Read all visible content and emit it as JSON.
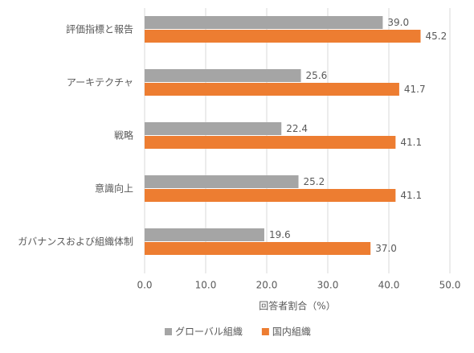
{
  "chart_data": {
    "type": "hbar",
    "categories": [
      "評価指標と報告",
      "アーキテクチャ",
      "戦略",
      "意識向上",
      "ガバナンスおよび組織体制"
    ],
    "series": [
      {
        "name": "グローバル組織",
        "color": "#a5a5a5",
        "values": [
          39.0,
          25.6,
          22.4,
          25.2,
          19.6
        ],
        "value_labels": [
          "39.0",
          "25.6",
          "22.4",
          "25.2",
          "19.6"
        ]
      },
      {
        "name": "国内組織",
        "color": "#ed7d31",
        "values": [
          45.2,
          41.7,
          41.1,
          41.1,
          37.0
        ],
        "value_labels": [
          "45.2",
          "41.7",
          "41.1",
          "41.1",
          "37.0"
        ]
      }
    ],
    "xlabel": "回答者割合（%）",
    "xlim": [
      0,
      50
    ],
    "xticks": [
      {
        "value": 0,
        "label": "0.0"
      },
      {
        "value": 10,
        "label": "10.0"
      },
      {
        "value": 20,
        "label": "20.0"
      },
      {
        "value": 30,
        "label": "30.0"
      },
      {
        "value": 40,
        "label": "40.0"
      },
      {
        "value": 50,
        "label": "50.0"
      }
    ],
    "grid": true,
    "legend": "bottom"
  }
}
